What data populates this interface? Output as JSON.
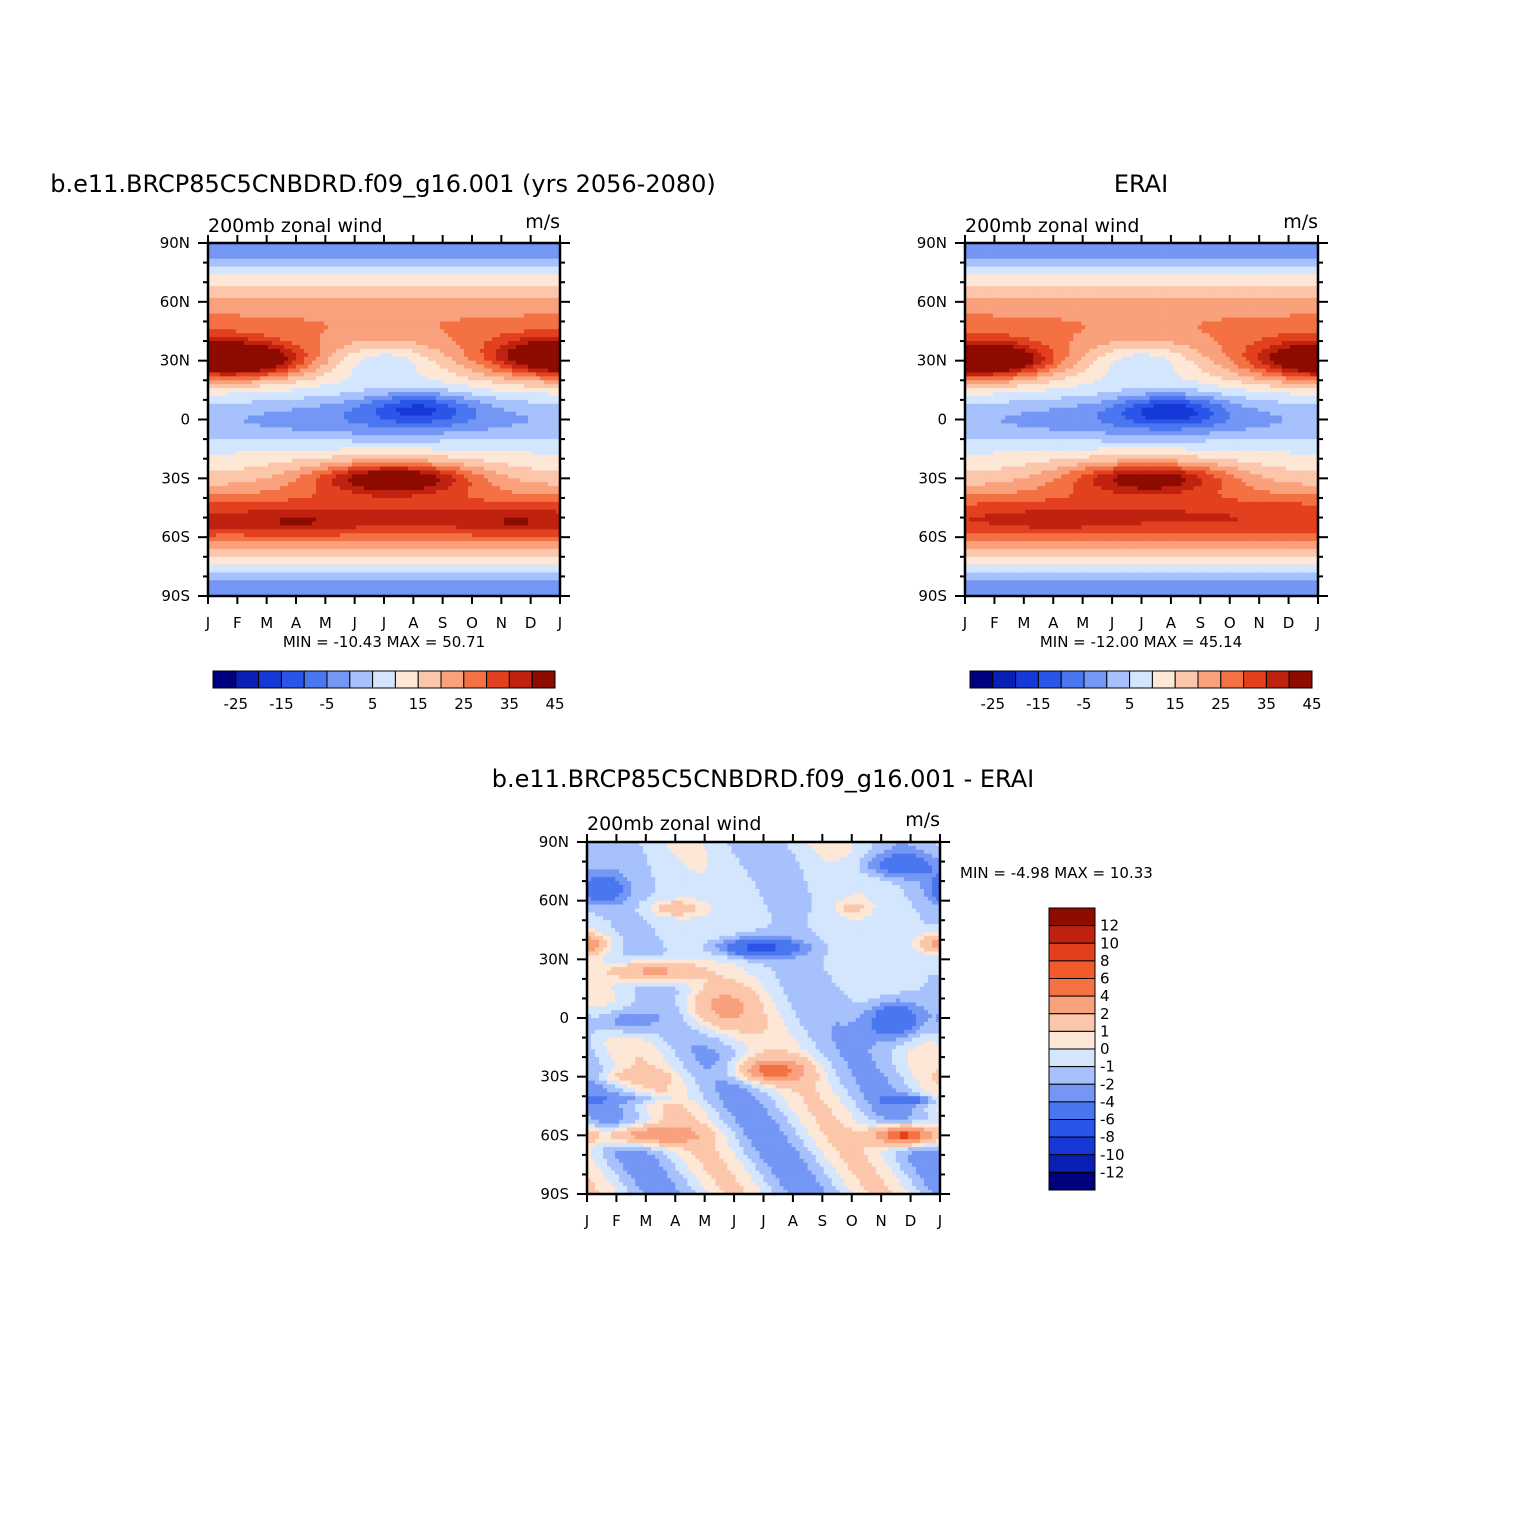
{
  "chart_data": [
    {
      "type": "heatmap",
      "title": "b.e11.BRCP85C5CNBDRD.f09_g16.001 (yrs 2056-2080)",
      "left_label": "200mb  zonal wind",
      "right_label": "m/s",
      "x_tick_labels": [
        "J",
        "F",
        "M",
        "A",
        "M",
        "J",
        "J",
        "A",
        "S",
        "O",
        "N",
        "D",
        "J"
      ],
      "y_tick_labels": [
        "90N",
        "60N",
        "30N",
        "0",
        "30S",
        "60S",
        "90S"
      ],
      "ylim": [
        -90,
        90
      ],
      "stats": "MIN =  -10.43 MAX =   50.71",
      "colorbar_labels": [
        "-25",
        "-15",
        "-5",
        "5",
        "15",
        "25",
        "35",
        "45"
      ],
      "features": [
        {
          "x": 1.5,
          "y": 30,
          "a": 24,
          "sx": 1.9,
          "sy": 8
        },
        {
          "x": 11.5,
          "y": 32,
          "a": 20,
          "sx": 2.0,
          "sy": 9
        },
        {
          "x": 6.4,
          "y": -30,
          "a": 24,
          "sx": 2.4,
          "sy": 7
        },
        {
          "x": 3.0,
          "y": -53,
          "a": 6,
          "sx": 2.0,
          "sy": 6
        },
        {
          "x": 10.5,
          "y": -53,
          "a": 6,
          "sx": 2.0,
          "sy": 6
        },
        {
          "x": 7.2,
          "y": 6,
          "a": -15,
          "sx": 1.8,
          "sy": 8
        },
        {
          "x": 6.0,
          "y": 30,
          "a": -8,
          "sx": 1.5,
          "sy": 9
        }
      ]
    },
    {
      "type": "heatmap",
      "title": "ERAI",
      "left_label": "200mb  zonal wind",
      "right_label": "m/s",
      "x_tick_labels": [
        "J",
        "F",
        "M",
        "A",
        "M",
        "J",
        "J",
        "A",
        "S",
        "O",
        "N",
        "D",
        "J"
      ],
      "y_tick_labels": [
        "90N",
        "60N",
        "30N",
        "0",
        "30S",
        "60S",
        "90S"
      ],
      "ylim": [
        -90,
        90
      ],
      "stats": "MIN =  -12.00 MAX =   45.14",
      "colorbar_labels": [
        "-25",
        "-15",
        "-5",
        "5",
        "15",
        "25",
        "35",
        "45"
      ],
      "features": [
        {
          "x": 1.3,
          "y": 30,
          "a": 20,
          "sx": 1.8,
          "sy": 8
        },
        {
          "x": 11.5,
          "y": 30,
          "a": 18,
          "sx": 2.0,
          "sy": 9
        },
        {
          "x": 6.3,
          "y": -30,
          "a": 20,
          "sx": 2.4,
          "sy": 7
        },
        {
          "x": 3.0,
          "y": -52,
          "a": 3,
          "sx": 2.0,
          "sy": 6
        },
        {
          "x": 7.0,
          "y": 5,
          "a": -17,
          "sx": 1.7,
          "sy": 8
        },
        {
          "x": 6.0,
          "y": 30,
          "a": -8,
          "sx": 1.5,
          "sy": 9
        }
      ]
    },
    {
      "type": "heatmap",
      "title": "b.e11.BRCP85C5CNBDRD.f09_g16.001 - ERAI",
      "left_label": "200mb  zonal wind",
      "right_label": "m/s",
      "x_tick_labels": [
        "J",
        "F",
        "M",
        "A",
        "M",
        "J",
        "J",
        "A",
        "S",
        "O",
        "N",
        "D",
        "J"
      ],
      "y_tick_labels": [
        "90N",
        "60N",
        "30N",
        "0",
        "30S",
        "60S",
        "90S"
      ],
      "ylim": [
        -90,
        90
      ],
      "stats": "MIN =   -4.98 MAX =   10.33",
      "colorbar_labels": [
        "12",
        "10",
        "8",
        "6",
        "4",
        "2",
        "1",
        "0",
        "-1",
        "-2",
        "-4",
        "-6",
        "-8",
        "-10",
        "-12"
      ],
      "features": [
        {
          "x": 5.8,
          "y": 36,
          "a": -5,
          "sx": 1.4,
          "sy": 5
        },
        {
          "x": 10.5,
          "y": -1,
          "a": -5,
          "sx": 1.0,
          "sy": 11
        },
        {
          "x": 1.2,
          "y": -2,
          "a": -3,
          "sx": 1.1,
          "sy": 7
        },
        {
          "x": 0.5,
          "y": 66,
          "a": -4,
          "sx": 0.8,
          "sy": 8
        },
        {
          "x": 10.5,
          "y": 78,
          "a": -3,
          "sx": 1.3,
          "sy": 6
        },
        {
          "x": 2.0,
          "y": -41,
          "a": -2,
          "sx": 1.2,
          "sy": 2.5
        },
        {
          "x": 11.0,
          "y": -42,
          "a": -3,
          "sx": 0.9,
          "sy": 2.5
        },
        {
          "x": 2.3,
          "y": 24,
          "a": 5,
          "sx": 1.4,
          "sy": 5
        },
        {
          "x": 6.2,
          "y": -27,
          "a": 6,
          "sx": 1.2,
          "sy": 6
        },
        {
          "x": 2.0,
          "y": -60,
          "a": 6,
          "sx": 1.6,
          "sy": 5
        },
        {
          "x": 10.8,
          "y": -60,
          "a": 10,
          "sx": 1.0,
          "sy": 5
        },
        {
          "x": 3.0,
          "y": 56,
          "a": 3,
          "sx": 0.8,
          "sy": 4
        },
        {
          "x": 0.2,
          "y": 38,
          "a": 3,
          "sx": 0.6,
          "sy": 5
        },
        {
          "x": 11.8,
          "y": 38,
          "a": 3,
          "sx": 0.6,
          "sy": 5
        },
        {
          "x": 9.0,
          "y": 56,
          "a": 2,
          "sx": 0.5,
          "sy": 4
        },
        {
          "x": 4.5,
          "y": 5,
          "a": 4,
          "sx": 1.2,
          "sy": 12
        },
        {
          "x": 1.5,
          "y": -30,
          "a": 2,
          "sx": 1.3,
          "sy": 3
        }
      ]
    }
  ]
}
